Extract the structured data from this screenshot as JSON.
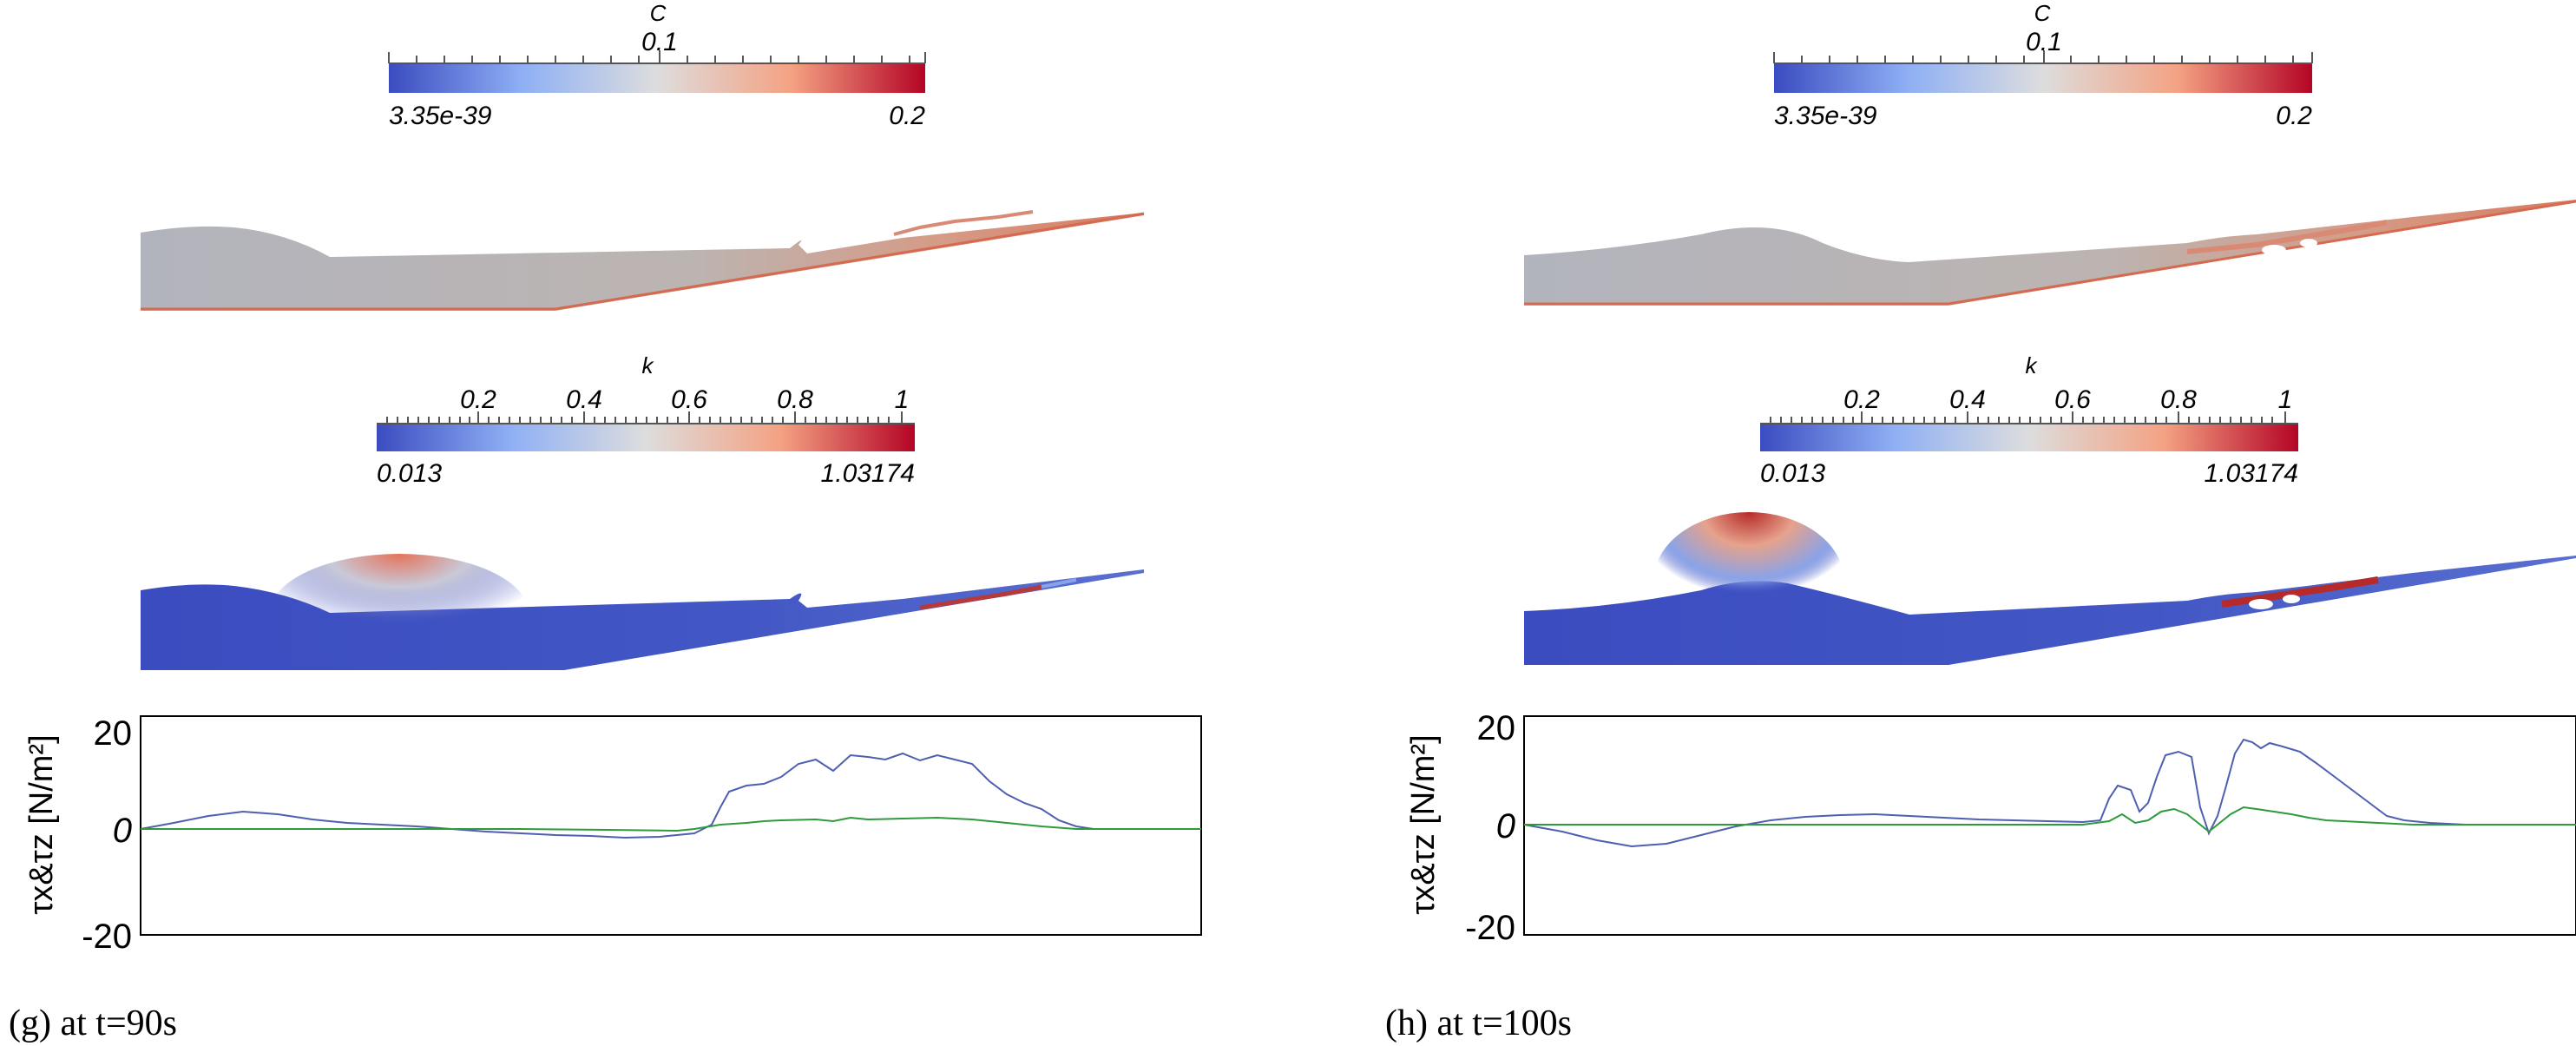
{
  "panels": [
    {
      "id": "g",
      "caption": "(g)  at  t=90s",
      "colorbar_c": {
        "title": "C",
        "min_label": "3.35e-39",
        "max_label": "0.2",
        "mid_label": "0.1"
      },
      "colorbar_k": {
        "title": "k",
        "min_label": "0.013",
        "max_label": "1.03174",
        "tick_labels": [
          "0.2",
          "0.4",
          "0.6",
          "0.8",
          "1"
        ]
      },
      "stress_plot": {
        "ylabel": "τx&τz [N/m²]",
        "ylim": [
          -20,
          20
        ],
        "yticks": [
          "20",
          "0",
          "-20"
        ]
      }
    },
    {
      "id": "h",
      "caption": "(h)  at  t=100s",
      "colorbar_c": {
        "title": "C",
        "min_label": "3.35e-39",
        "max_label": "0.2",
        "mid_label": "0.1"
      },
      "colorbar_k": {
        "title": "k",
        "min_label": "0.013",
        "max_label": "1.03174",
        "tick_labels": [
          "0.2",
          "0.4",
          "0.6",
          "0.8",
          "1"
        ]
      },
      "stress_plot": {
        "ylabel": "τx&τz [N/m²]",
        "ylim": [
          -20,
          20
        ],
        "yticks": [
          "20",
          "0",
          "-20"
        ]
      }
    }
  ],
  "colors": {
    "colormap_low": "#3b4cc0",
    "colormap_mid": "#dddddd",
    "colormap_high": "#b40426",
    "tau_x_line": "#4f5fb0",
    "tau_z_line": "#2e9a3c"
  }
}
